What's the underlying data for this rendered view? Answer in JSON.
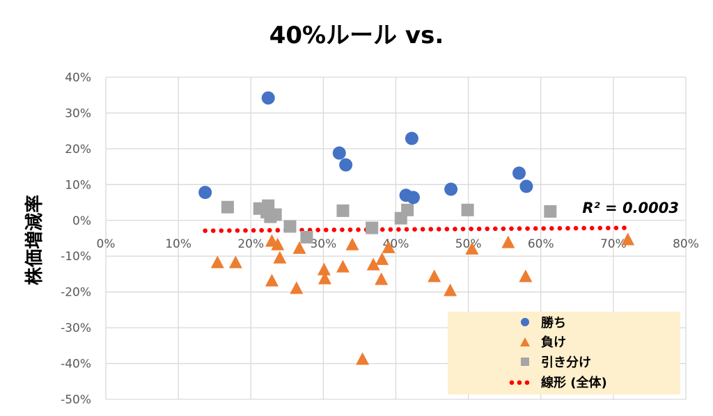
{
  "chart_data": {
    "type": "scatter",
    "title": "40%ルール vs.",
    "xlabel": "",
    "ylabel": "株価増減率",
    "xlim": [
      0,
      80
    ],
    "ylim": [
      -50,
      40
    ],
    "x_ticks": [
      "0%",
      "10%",
      "20%",
      "30%",
      "40%",
      "50%",
      "60%",
      "70%",
      "80%"
    ],
    "y_ticks": [
      "40%",
      "30%",
      "20%",
      "10%",
      "0%",
      "-10%",
      "-20%",
      "-30%",
      "-40%",
      "-50%"
    ],
    "grid": true,
    "legend_position": "bottom-right",
    "colors": {
      "win": "#4472C4",
      "loss": "#ED7D31",
      "draw": "#A5A5A5",
      "trend": "#FF0000",
      "legend_bg": "#FEF0CC"
    },
    "series": [
      {
        "name": "勝ち",
        "marker": "circle",
        "points": [
          [
            13.7,
            7.8
          ],
          [
            22.4,
            34.2
          ],
          [
            32.2,
            18.8
          ],
          [
            33.1,
            15.5
          ],
          [
            42.2,
            22.9
          ],
          [
            41.4,
            7.0
          ],
          [
            42.4,
            6.4
          ],
          [
            47.6,
            8.7
          ],
          [
            57.0,
            13.2
          ],
          [
            58.0,
            9.5
          ]
        ]
      },
      {
        "name": "負け",
        "marker": "triangle",
        "points": [
          [
            15.4,
            -11.8
          ],
          [
            17.9,
            -11.8
          ],
          [
            22.9,
            -5.8
          ],
          [
            23.7,
            -6.8
          ],
          [
            24.0,
            -10.5
          ],
          [
            22.9,
            -16.9
          ],
          [
            26.3,
            -19.0
          ],
          [
            26.7,
            -7.8
          ],
          [
            30.1,
            -13.8
          ],
          [
            30.2,
            -16.3
          ],
          [
            32.7,
            -13.0
          ],
          [
            34.0,
            -6.8
          ],
          [
            36.9,
            -12.4
          ],
          [
            38.1,
            -10.9
          ],
          [
            38.0,
            -16.5
          ],
          [
            39.0,
            -7.6
          ],
          [
            35.4,
            -38.8
          ],
          [
            45.3,
            -15.7
          ],
          [
            47.5,
            -19.6
          ],
          [
            50.5,
            -8.0
          ],
          [
            55.5,
            -6.2
          ],
          [
            57.9,
            -15.7
          ],
          [
            72.0,
            -5.4
          ]
        ]
      },
      {
        "name": "引き分け",
        "marker": "square",
        "points": [
          [
            16.8,
            3.7
          ],
          [
            21.2,
            3.3
          ],
          [
            22.4,
            4.1
          ],
          [
            22.7,
            1.0
          ],
          [
            22.2,
            2.3
          ],
          [
            23.4,
            1.6
          ],
          [
            25.4,
            -1.7
          ],
          [
            27.7,
            -4.7
          ],
          [
            32.7,
            2.7
          ],
          [
            36.7,
            -2.1
          ],
          [
            40.7,
            0.6
          ],
          [
            41.6,
            2.9
          ],
          [
            49.9,
            2.9
          ],
          [
            61.3,
            2.5
          ]
        ]
      }
    ],
    "trendline": {
      "name": "線形 (全体)",
      "type": "linear",
      "from": [
        13.7,
        -2.9
      ],
      "to": [
        71.5,
        -2.1
      ],
      "r2_label": "R² = 0.0003"
    }
  }
}
